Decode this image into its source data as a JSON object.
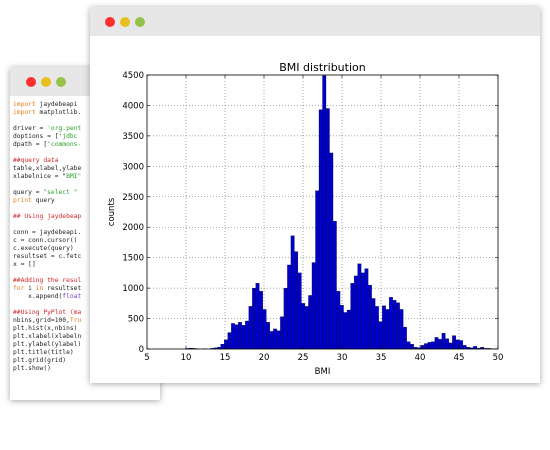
{
  "code_window": {
    "colors": {
      "close": "#ff2f2f",
      "minimize": "#e8bf1f",
      "maximize": "#96c14a"
    },
    "lines": [
      [
        {
          "t": "import",
          "c": "kw"
        },
        {
          "t": " jaydebeapi"
        }
      ],
      [
        {
          "t": "import",
          "c": "kw"
        },
        {
          "t": " matplotlib."
        }
      ],
      [],
      [
        {
          "t": "driver = "
        },
        {
          "t": "'org.pent",
          "c": "str"
        }
      ],
      [
        {
          "t": "doptions = ['"
        },
        {
          "t": "jdbc",
          "c": "str"
        }
      ],
      [
        {
          "t": "dpath = ['"
        },
        {
          "t": "commons-",
          "c": "str"
        }
      ],
      [],
      [
        {
          "t": "##query data",
          "c": "cm"
        }
      ],
      [
        {
          "t": "table,xlabel,ylabe"
        }
      ],
      [
        {
          "t": "xlabelnice = \""
        },
        {
          "t": "BMI\"",
          "c": "str"
        }
      ],
      [],
      [
        {
          "t": "query = "
        },
        {
          "t": "\"select \"",
          "c": "str"
        }
      ],
      [
        {
          "t": "print",
          "c": "kw"
        },
        {
          "t": " query"
        }
      ],
      [],
      [
        {
          "t": "## Using jaydebeap",
          "c": "cm"
        }
      ],
      [],
      [
        {
          "t": "conn = jaydebeapi."
        }
      ],
      [
        {
          "t": "c = conn.cursor()"
        }
      ],
      [
        {
          "t": "c.execute(query)"
        }
      ],
      [
        {
          "t": "resultset = c.fetc"
        }
      ],
      [
        {
          "t": "x = []"
        }
      ],
      [],
      [
        {
          "t": "##Adding the resul",
          "c": "cm"
        }
      ],
      [
        {
          "t": "for",
          "c": "kw"
        },
        {
          "t": " i "
        },
        {
          "t": "in",
          "c": "kw"
        },
        {
          "t": " resultset"
        }
      ],
      [
        {
          "t": "    x.append("
        },
        {
          "t": "float",
          "c": "ex"
        }
      ],
      [],
      [
        {
          "t": "##Using PyPlot (ma",
          "c": "cm"
        }
      ],
      [
        {
          "t": "nbins,grid=100,"
        },
        {
          "t": "Tru",
          "c": "kw"
        }
      ],
      [
        {
          "t": "plt.hist(x,nbins)"
        }
      ],
      [
        {
          "t": "plt.xlabel(xlabeln"
        }
      ],
      [
        {
          "t": "plt.ylabel(ylabel)"
        }
      ],
      [
        {
          "t": "plt.title(title)"
        }
      ],
      [
        {
          "t": "plt.grid(grid)"
        }
      ],
      [
        {
          "t": "plt.show()"
        }
      ]
    ]
  },
  "chart_window": {
    "colors": {
      "close": "#ff2f2f",
      "minimize": "#e8bf1f",
      "maximize": "#96c14a"
    }
  },
  "chart_data": {
    "type": "bar",
    "title": "BMI distribution",
    "xlabel": "BMI",
    "ylabel": "counts",
    "xlim": [
      5,
      50
    ],
    "ylim": [
      0,
      4500
    ],
    "xticks": [
      5,
      10,
      15,
      20,
      25,
      30,
      35,
      40,
      45,
      50
    ],
    "yticks": [
      0,
      500,
      1000,
      1500,
      2000,
      2500,
      3000,
      3500,
      4000,
      4500
    ],
    "grid": true,
    "bar_color": "#0000cc",
    "bins": [
      {
        "x0": 9.95,
        "x1": 10.4,
        "y": 10
      },
      {
        "x0": 10.4,
        "x1": 10.85,
        "y": 15
      },
      {
        "x0": 10.85,
        "x1": 11.3,
        "y": 10
      },
      {
        "x0": 11.3,
        "x1": 11.75,
        "y": 5
      },
      {
        "x0": 12.2,
        "x1": 12.65,
        "y": 5
      },
      {
        "x0": 13.1,
        "x1": 13.55,
        "y": 10
      },
      {
        "x0": 13.55,
        "x1": 14.0,
        "y": 20
      },
      {
        "x0": 14.0,
        "x1": 14.45,
        "y": 30
      },
      {
        "x0": 14.45,
        "x1": 14.9,
        "y": 80
      },
      {
        "x0": 14.9,
        "x1": 15.35,
        "y": 150
      },
      {
        "x0": 15.35,
        "x1": 15.8,
        "y": 270
      },
      {
        "x0": 15.8,
        "x1": 16.25,
        "y": 420
      },
      {
        "x0": 16.25,
        "x1": 16.7,
        "y": 400
      },
      {
        "x0": 16.7,
        "x1": 17.15,
        "y": 440
      },
      {
        "x0": 17.15,
        "x1": 17.6,
        "y": 390
      },
      {
        "x0": 17.6,
        "x1": 18.05,
        "y": 460
      },
      {
        "x0": 18.05,
        "x1": 18.5,
        "y": 700
      },
      {
        "x0": 18.5,
        "x1": 18.95,
        "y": 1000
      },
      {
        "x0": 18.95,
        "x1": 19.4,
        "y": 1080
      },
      {
        "x0": 19.4,
        "x1": 19.85,
        "y": 950
      },
      {
        "x0": 19.85,
        "x1": 20.3,
        "y": 650
      },
      {
        "x0": 20.3,
        "x1": 20.75,
        "y": 440
      },
      {
        "x0": 20.75,
        "x1": 21.2,
        "y": 290
      },
      {
        "x0": 21.2,
        "x1": 21.65,
        "y": 330
      },
      {
        "x0": 21.65,
        "x1": 22.1,
        "y": 300
      },
      {
        "x0": 22.1,
        "x1": 22.55,
        "y": 530
      },
      {
        "x0": 22.55,
        "x1": 23.0,
        "y": 1000
      },
      {
        "x0": 23.0,
        "x1": 23.45,
        "y": 1380
      },
      {
        "x0": 23.45,
        "x1": 23.9,
        "y": 1860
      },
      {
        "x0": 23.9,
        "x1": 24.35,
        "y": 1600
      },
      {
        "x0": 24.35,
        "x1": 24.8,
        "y": 1250
      },
      {
        "x0": 24.8,
        "x1": 25.25,
        "y": 750
      },
      {
        "x0": 25.25,
        "x1": 25.7,
        "y": 700
      },
      {
        "x0": 25.7,
        "x1": 26.15,
        "y": 880
      },
      {
        "x0": 26.15,
        "x1": 26.6,
        "y": 1420
      },
      {
        "x0": 26.6,
        "x1": 27.05,
        "y": 2600
      },
      {
        "x0": 27.05,
        "x1": 27.5,
        "y": 3930
      },
      {
        "x0": 27.5,
        "x1": 27.95,
        "y": 4490
      },
      {
        "x0": 27.95,
        "x1": 28.4,
        "y": 3950
      },
      {
        "x0": 28.4,
        "x1": 28.85,
        "y": 3220
      },
      {
        "x0": 28.85,
        "x1": 29.3,
        "y": 2100
      },
      {
        "x0": 29.3,
        "x1": 29.75,
        "y": 950
      },
      {
        "x0": 29.75,
        "x1": 30.2,
        "y": 720
      },
      {
        "x0": 30.2,
        "x1": 30.65,
        "y": 600
      },
      {
        "x0": 30.65,
        "x1": 31.1,
        "y": 640
      },
      {
        "x0": 31.1,
        "x1": 31.55,
        "y": 1080
      },
      {
        "x0": 31.55,
        "x1": 32.0,
        "y": 1200
      },
      {
        "x0": 32.0,
        "x1": 32.45,
        "y": 1400
      },
      {
        "x0": 32.45,
        "x1": 32.9,
        "y": 1250
      },
      {
        "x0": 32.9,
        "x1": 33.35,
        "y": 1320
      },
      {
        "x0": 33.35,
        "x1": 33.8,
        "y": 1050
      },
      {
        "x0": 33.8,
        "x1": 34.25,
        "y": 830
      },
      {
        "x0": 34.25,
        "x1": 34.7,
        "y": 700
      },
      {
        "x0": 34.7,
        "x1": 35.15,
        "y": 450
      },
      {
        "x0": 35.15,
        "x1": 35.6,
        "y": 710
      },
      {
        "x0": 35.6,
        "x1": 36.05,
        "y": 650
      },
      {
        "x0": 36.05,
        "x1": 36.5,
        "y": 850
      },
      {
        "x0": 36.5,
        "x1": 36.95,
        "y": 800
      },
      {
        "x0": 36.95,
        "x1": 37.4,
        "y": 760
      },
      {
        "x0": 37.4,
        "x1": 37.85,
        "y": 650
      },
      {
        "x0": 37.85,
        "x1": 38.3,
        "y": 360
      },
      {
        "x0": 38.3,
        "x1": 38.75,
        "y": 120
      },
      {
        "x0": 38.75,
        "x1": 39.2,
        "y": 80
      },
      {
        "x0": 39.2,
        "x1": 39.65,
        "y": 30
      },
      {
        "x0": 39.65,
        "x1": 40.1,
        "y": 20
      },
      {
        "x0": 40.1,
        "x1": 40.55,
        "y": 60
      },
      {
        "x0": 40.55,
        "x1": 41.0,
        "y": 90
      },
      {
        "x0": 41.0,
        "x1": 41.45,
        "y": 110
      },
      {
        "x0": 41.45,
        "x1": 41.9,
        "y": 120
      },
      {
        "x0": 41.9,
        "x1": 42.35,
        "y": 190
      },
      {
        "x0": 42.35,
        "x1": 42.8,
        "y": 160
      },
      {
        "x0": 42.8,
        "x1": 43.25,
        "y": 260
      },
      {
        "x0": 43.25,
        "x1": 43.7,
        "y": 170
      },
      {
        "x0": 43.7,
        "x1": 44.15,
        "y": 100
      },
      {
        "x0": 44.15,
        "x1": 44.6,
        "y": 220
      },
      {
        "x0": 44.6,
        "x1": 45.05,
        "y": 150
      },
      {
        "x0": 45.05,
        "x1": 45.5,
        "y": 140
      },
      {
        "x0": 45.5,
        "x1": 45.95,
        "y": 60
      },
      {
        "x0": 45.95,
        "x1": 46.4,
        "y": 30
      },
      {
        "x0": 46.4,
        "x1": 46.85,
        "y": 20
      },
      {
        "x0": 46.85,
        "x1": 47.3,
        "y": 45
      },
      {
        "x0": 47.3,
        "x1": 47.75,
        "y": 15
      },
      {
        "x0": 47.75,
        "x1": 48.2,
        "y": 30
      },
      {
        "x0": 48.2,
        "x1": 48.65,
        "y": 10
      },
      {
        "x0": 48.65,
        "x1": 49.1,
        "y": 10
      },
      {
        "x0": 49.1,
        "x1": 49.55,
        "y": 5
      },
      {
        "x0": 49.55,
        "x1": 50.0,
        "y": 5
      }
    ]
  }
}
